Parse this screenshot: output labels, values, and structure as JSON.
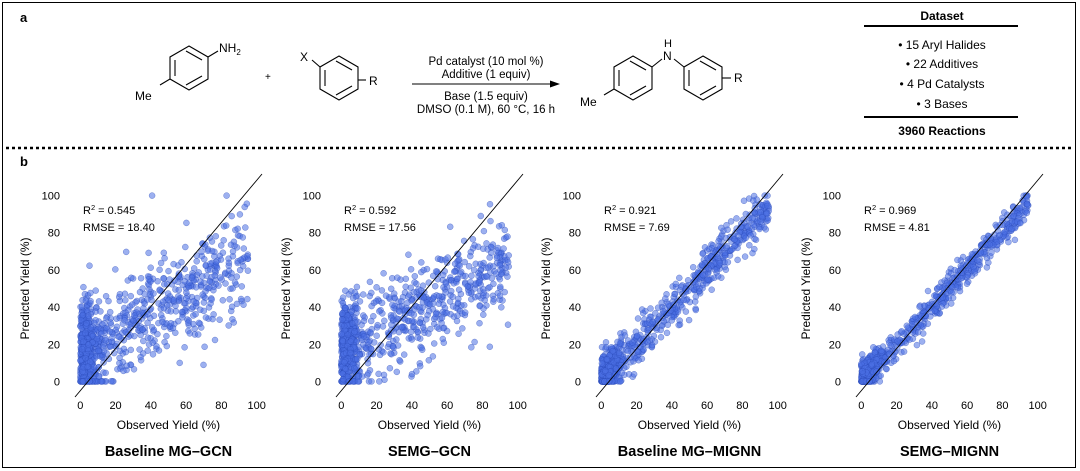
{
  "panel_a": {
    "label": "a",
    "reactant1_group": "NH",
    "reactant1_subscript": "2",
    "reactant1_methyl": "Me",
    "plus": "+",
    "reactant2_halide": "X",
    "reactant2_r": "R",
    "conditions_above": [
      "Pd catalyst (10 mol %)",
      "Additive (1 equiv)"
    ],
    "conditions_below": [
      "Base (1.5 equiv)",
      "DMSO (0.1 M), 60 °C, 16 h"
    ],
    "product_nh": "H",
    "product_n": "N",
    "product_methyl": "Me",
    "product_r": "R",
    "dataset": {
      "title": "Dataset",
      "items": [
        "• 15 Aryl Halides",
        "• 22 Additives",
        "• 4 Pd Catalysts",
        "• 3 Bases"
      ],
      "total": "3960 Reactions"
    }
  },
  "panel_b": {
    "label": "b"
  },
  "chart_data": [
    {
      "type": "scatter",
      "title": "Baseline MG–GCN",
      "xlabel": "Observed Yield (%)",
      "ylabel": "Predicted Yield (%)",
      "xlim": [
        -3,
        103
      ],
      "ylim": [
        -3,
        103
      ],
      "xticks": [
        0,
        20,
        40,
        60,
        80,
        100
      ],
      "yticks": [
        0,
        20,
        40,
        60,
        80,
        100
      ],
      "r2_label": "R",
      "r2_exp": "2",
      "r2_value": " = 0.545",
      "rmse_text": "RMSE = 18.40",
      "reference_line": "y = x",
      "point_color": "#4a6fe3",
      "rmse": 18.4,
      "profile": "gcn"
    },
    {
      "type": "scatter",
      "title": "SEMG–GCN",
      "xlabel": "Observed Yield (%)",
      "ylabel": "Predicted Yield (%)",
      "xlim": [
        -3,
        103
      ],
      "ylim": [
        -3,
        103
      ],
      "xticks": [
        0,
        20,
        40,
        60,
        80,
        100
      ],
      "yticks": [
        0,
        20,
        40,
        60,
        80,
        100
      ],
      "r2_label": "R",
      "r2_exp": "2",
      "r2_value": " = 0.592",
      "rmse_text": "RMSE = 17.56",
      "reference_line": "y = x",
      "point_color": "#4a6fe3",
      "rmse": 17.56,
      "profile": "gcn"
    },
    {
      "type": "scatter",
      "title": "Baseline MG–MIGNN",
      "xlabel": "Observed Yield (%)",
      "ylabel": "Predicted Yield (%)",
      "xlim": [
        -3,
        103
      ],
      "ylim": [
        -3,
        103
      ],
      "xticks": [
        0,
        20,
        40,
        60,
        80,
        100
      ],
      "yticks": [
        0,
        20,
        40,
        60,
        80,
        100
      ],
      "r2_label": "R",
      "r2_exp": "2",
      "r2_value": " = 0.921",
      "rmse_text": "RMSE = 7.69",
      "reference_line": "y = x",
      "point_color": "#4a6fe3",
      "rmse": 7.69,
      "profile": "mignn"
    },
    {
      "type": "scatter",
      "title": "SEMG–MIGNN",
      "xlabel": "Observed Yield (%)",
      "ylabel": "Predicted Yield (%)",
      "xlim": [
        -3,
        103
      ],
      "ylim": [
        -3,
        103
      ],
      "xticks": [
        0,
        20,
        40,
        60,
        80,
        100
      ],
      "yticks": [
        0,
        20,
        40,
        60,
        80,
        100
      ],
      "r2_label": "R",
      "r2_exp": "2",
      "r2_value": " = 0.969",
      "rmse_text": "RMSE = 4.81",
      "reference_line": "y = x",
      "point_color": "#4a6fe3",
      "rmse": 4.81,
      "profile": "mignn"
    }
  ]
}
